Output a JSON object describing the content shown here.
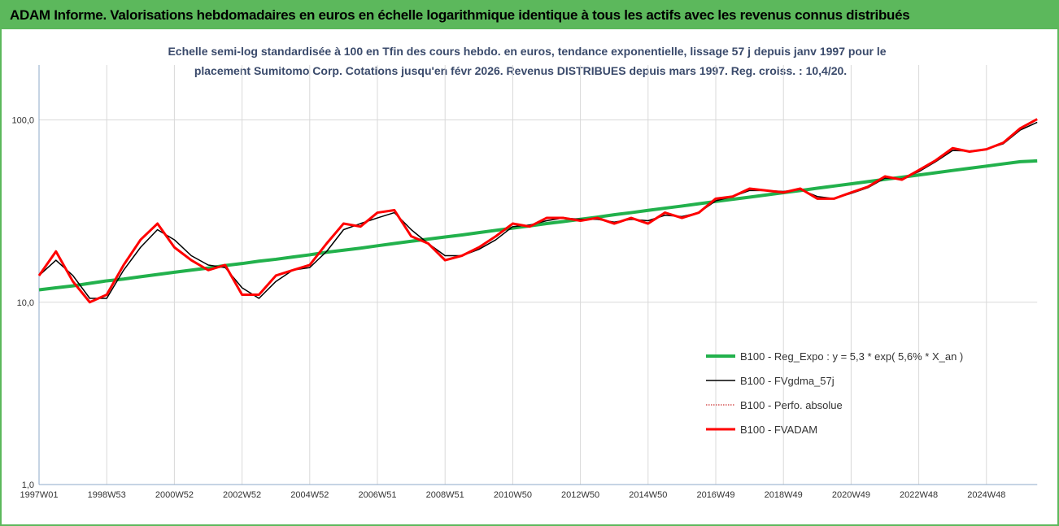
{
  "chart_data": {
    "type": "line",
    "title": "ADAM Informe. Valorisations hebdomadaires en euros en échelle logarithmique identique à tous les actifs avec les revenus connus distribués",
    "subtitle": [
      "Echelle semi-log standardisée à 100 en Tfin des cours hebdo. en euros, tendance exponentielle, lissage 57 j depuis janv 1997 pour le",
      "placement Sumitomo Corp. Cotations jusqu'en févr 2026. Revenus DISTRIBUES depuis mars 1997. Reg. croiss. : 10,4/20."
    ],
    "log_scale": true,
    "grid": true,
    "legend_position": "lower right",
    "ylim": [
      1,
      200
    ],
    "yticks": [
      {
        "value": 1,
        "label": "1,0"
      },
      {
        "value": 10,
        "label": "10,0"
      },
      {
        "value": 100,
        "label": "100,0"
      }
    ],
    "categories": [
      "1997W01",
      null,
      null,
      null,
      "1998W53",
      null,
      null,
      null,
      "2000W52",
      null,
      null,
      null,
      "2002W52",
      null,
      null,
      null,
      "2004W52",
      null,
      null,
      null,
      "2006W51",
      null,
      null,
      null,
      "2008W51",
      null,
      null,
      null,
      "2010W50",
      null,
      null,
      null,
      "2012W50",
      null,
      null,
      null,
      "2014W50",
      null,
      null,
      null,
      "2016W49",
      null,
      null,
      null,
      "2018W49",
      null,
      null,
      null,
      "2020W49",
      null,
      null,
      null,
      "2022W48",
      null,
      null,
      null,
      "2024W48",
      null,
      null,
      null
    ],
    "series": [
      {
        "name": "B100 - Reg_Expo : y = 5,3 * exp( 5,6% *  X_an )",
        "color": "#22b14c",
        "style": "solid",
        "width": 4,
        "values": [
          11.7,
          12.0,
          12.3,
          12.7,
          13.1,
          13.4,
          13.8,
          14.2,
          14.6,
          15.0,
          15.4,
          15.9,
          16.3,
          16.8,
          17.2,
          17.7,
          18.2,
          18.8,
          19.3,
          19.8,
          20.4,
          21.0,
          21.6,
          22.2,
          22.8,
          23.4,
          24.1,
          24.8,
          25.5,
          26.2,
          27.0,
          27.7,
          28.5,
          29.3,
          30.2,
          31.0,
          31.9,
          32.8,
          33.7,
          34.7,
          35.7,
          36.7,
          37.7,
          38.8,
          39.9,
          41.0,
          42.2,
          43.4,
          44.6,
          45.9,
          47.2,
          48.5,
          49.9,
          51.3,
          52.8,
          54.3,
          55.8,
          57.4,
          59.0,
          59.6
        ]
      },
      {
        "name": "B100 - FVgdma_57j",
        "color": "#000000",
        "style": "solid",
        "width": 1.5,
        "values": [
          14,
          17,
          14,
          10.5,
          10.5,
          15,
          20,
          25,
          22,
          18,
          16,
          15.5,
          12,
          10.5,
          13,
          15,
          15.5,
          19,
          25,
          27,
          29,
          31,
          25,
          21,
          18,
          18,
          19.5,
          22,
          26,
          26.5,
          28,
          29,
          28.5,
          28.5,
          27.5,
          28.5,
          28,
          30,
          29.5,
          31,
          36,
          38,
          41,
          41,
          40.5,
          41.5,
          38,
          37,
          39.5,
          42.5,
          48,
          47.5,
          52,
          59,
          68,
          67.5,
          69,
          74,
          88,
          97
        ]
      },
      {
        "name": "B100 - Perfo. absolue",
        "color": "#c00000",
        "style": "dotted",
        "width": 1,
        "values": [
          14,
          19,
          13,
          10,
          11,
          16,
          22,
          27,
          20,
          17,
          15,
          16,
          11,
          11,
          14,
          15,
          16,
          21,
          27,
          26,
          31,
          32,
          23,
          21,
          17,
          18,
          20,
          23,
          27,
          26,
          29,
          29,
          28,
          29,
          27,
          29,
          27,
          31,
          29,
          31,
          37,
          38,
          42,
          41,
          40,
          42,
          37,
          37,
          40,
          43,
          49,
          47,
          53,
          60,
          70,
          67,
          69,
          75,
          90,
          101
        ]
      },
      {
        "name": "B100 - FVADAM",
        "color": "#ff0000",
        "style": "solid",
        "width": 3,
        "values": [
          14,
          19,
          13,
          10,
          11,
          16,
          22,
          27,
          20,
          17,
          15,
          16,
          11,
          11,
          14,
          15,
          16,
          21,
          27,
          26,
          31,
          32,
          23,
          21,
          17,
          18,
          20,
          23,
          27,
          26,
          29,
          29,
          28,
          29,
          27,
          29,
          27,
          31,
          29,
          31,
          37,
          38,
          42,
          41,
          40,
          42,
          37,
          37,
          40,
          43,
          49,
          47,
          53,
          60,
          70,
          67,
          69,
          75,
          90,
          101
        ]
      }
    ]
  }
}
